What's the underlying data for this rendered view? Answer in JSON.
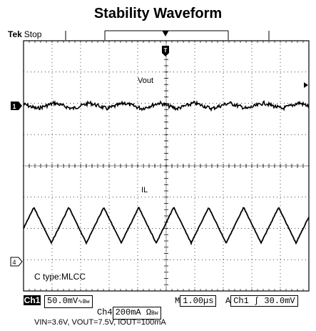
{
  "title": "Stability Waveform",
  "scope": {
    "brand": "Tek",
    "state": "Stop",
    "trigger_marker": "T",
    "ch1_marker": "1",
    "ch4_marker": "4"
  },
  "traces": {
    "vout_label": "Vout",
    "il_label": "IL",
    "capacitor_note": "C type:MLCC"
  },
  "status_bar": {
    "ch1_tag": "Ch1",
    "ch1_scale": "50.0mV",
    "ch1_coupling": "∿Bw",
    "time_prefix": "M",
    "timebase": "1.00µs",
    "trig_prefix": "A",
    "trigger": "Ch1  ∫  30.0mV",
    "ch4_label": "Ch4",
    "ch4_scale": "200mA Ω",
    "ch4_coupling": "Bw"
  },
  "conditions": "VIN=3.6V, VOUT=7.5V, IOUT=100mA",
  "colors": {
    "trace": "#000000",
    "grid": "#000000",
    "background": "#ffffff"
  }
}
